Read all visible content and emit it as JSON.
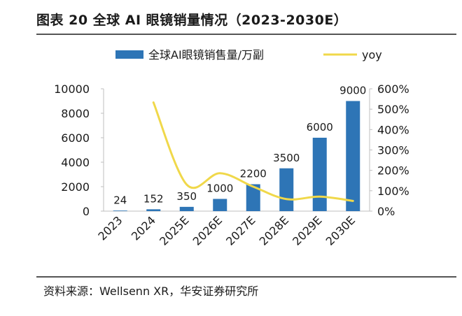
{
  "title": "图表 20 全球 AI 眼镜销量情况（2023-2030E）",
  "source": "资料来源：Wellsenn XR，华安证券研究所",
  "colors": {
    "bar": "#2e75b6",
    "line": "#f0d84a",
    "text": "#1a1a1a",
    "axis": "#bfbfbf"
  },
  "chart_data": {
    "type": "bar",
    "categories": [
      "2023",
      "2024",
      "2025E",
      "2026E",
      "2027E",
      "2028E",
      "2029E",
      "2030E"
    ],
    "series": [
      {
        "name": "全球AI眼镜销售量/万副",
        "type": "bar",
        "axis": "left",
        "values": [
          24,
          152,
          350,
          1000,
          2200,
          3500,
          6000,
          9000
        ],
        "data_labels": [
          "24",
          "152",
          "350",
          "1000",
          "2200",
          "3500",
          "6000",
          "9000"
        ]
      },
      {
        "name": "yoy",
        "type": "line",
        "axis": "right",
        "values": [
          null,
          5.33,
          1.3,
          1.86,
          1.2,
          0.59,
          0.71,
          0.5
        ]
      }
    ],
    "y_left": {
      "min": 0,
      "max": 10000,
      "ticks": [
        0,
        2000,
        4000,
        6000,
        8000,
        10000
      ],
      "tick_labels": [
        "0",
        "2000",
        "4000",
        "6000",
        "8000",
        "10000"
      ]
    },
    "y_right": {
      "min": 0,
      "max": 6,
      "ticks": [
        0,
        1,
        2,
        3,
        4,
        5,
        6
      ],
      "tick_labels": [
        "0%",
        "100%",
        "200%",
        "300%",
        "400%",
        "500%",
        "600%"
      ]
    },
    "legend": {
      "position": "top",
      "entries": [
        {
          "label": "全球AI眼镜销售量/万副",
          "kind": "bar"
        },
        {
          "label": "yoy",
          "kind": "line"
        }
      ]
    },
    "grid": false
  }
}
